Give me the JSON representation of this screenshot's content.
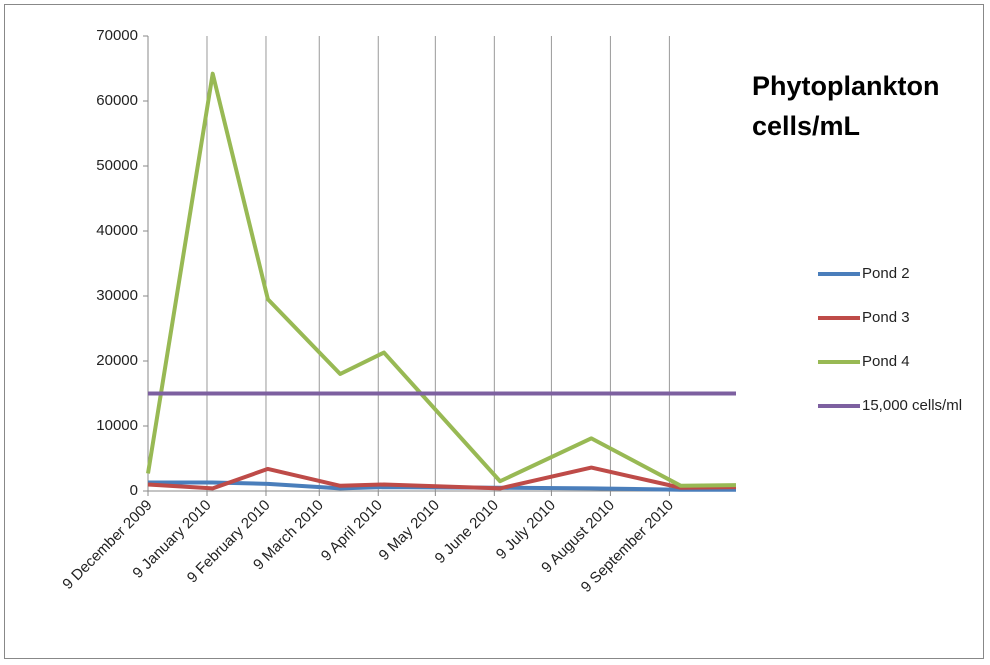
{
  "chart_data": {
    "type": "line",
    "title": "Phytoplankton cells/mL",
    "xlim": [
      "2009-12-09",
      "2010-10-14"
    ],
    "xticks": [
      {
        "value": "2009-12-09",
        "label": "9 December 2009"
      },
      {
        "value": "2010-01-09",
        "label": "9 January 2010"
      },
      {
        "value": "2010-02-09",
        "label": "9 February 2010"
      },
      {
        "value": "2010-03-09",
        "label": "9 March 2010"
      },
      {
        "value": "2010-04-09",
        "label": "9 April 2010"
      },
      {
        "value": "2010-05-09",
        "label": "9 May 2010"
      },
      {
        "value": "2010-06-09",
        "label": "9 June 2010"
      },
      {
        "value": "2010-07-09",
        "label": "9 July 2010"
      },
      {
        "value": "2010-08-09",
        "label": "9 August 2010"
      },
      {
        "value": "2010-09-09",
        "label": "9 September 2010"
      }
    ],
    "ylim": [
      0,
      70000
    ],
    "yticks": [
      0,
      10000,
      20000,
      30000,
      40000,
      50000,
      60000,
      70000
    ],
    "grid": "x",
    "legend": "right",
    "series": [
      {
        "name": "Pond 2",
        "color": "#4a7ebb",
        "x": [
          "2009-12-09",
          "2010-01-12",
          "2010-02-10",
          "2010-03-20",
          "2010-04-12",
          "2010-06-12",
          "2010-07-30",
          "2010-09-15",
          "2010-10-14"
        ],
        "values": [
          1300,
          1300,
          1100,
          400,
          600,
          500,
          400,
          200,
          200
        ]
      },
      {
        "name": "Pond 3",
        "color": "#be4b48",
        "x": [
          "2009-12-09",
          "2010-01-12",
          "2010-02-10",
          "2010-03-20",
          "2010-04-12",
          "2010-06-12",
          "2010-07-30",
          "2010-09-15",
          "2010-10-14"
        ],
        "values": [
          1000,
          400,
          3400,
          800,
          1000,
          400,
          3600,
          500,
          600
        ]
      },
      {
        "name": "Pond 4",
        "color": "#98b954",
        "x": [
          "2009-12-09",
          "2010-01-12",
          "2010-02-10",
          "2010-03-20",
          "2010-04-12",
          "2010-06-12",
          "2010-07-30",
          "2010-09-15",
          "2010-10-14"
        ],
        "values": [
          2700,
          64200,
          29500,
          18000,
          21300,
          1500,
          8100,
          800,
          900
        ]
      },
      {
        "name": "15,000 cells/ml",
        "color": "#7d60a0",
        "x": [
          "2009-12-09",
          "2010-10-14"
        ],
        "values": [
          15000,
          15000
        ]
      }
    ]
  }
}
